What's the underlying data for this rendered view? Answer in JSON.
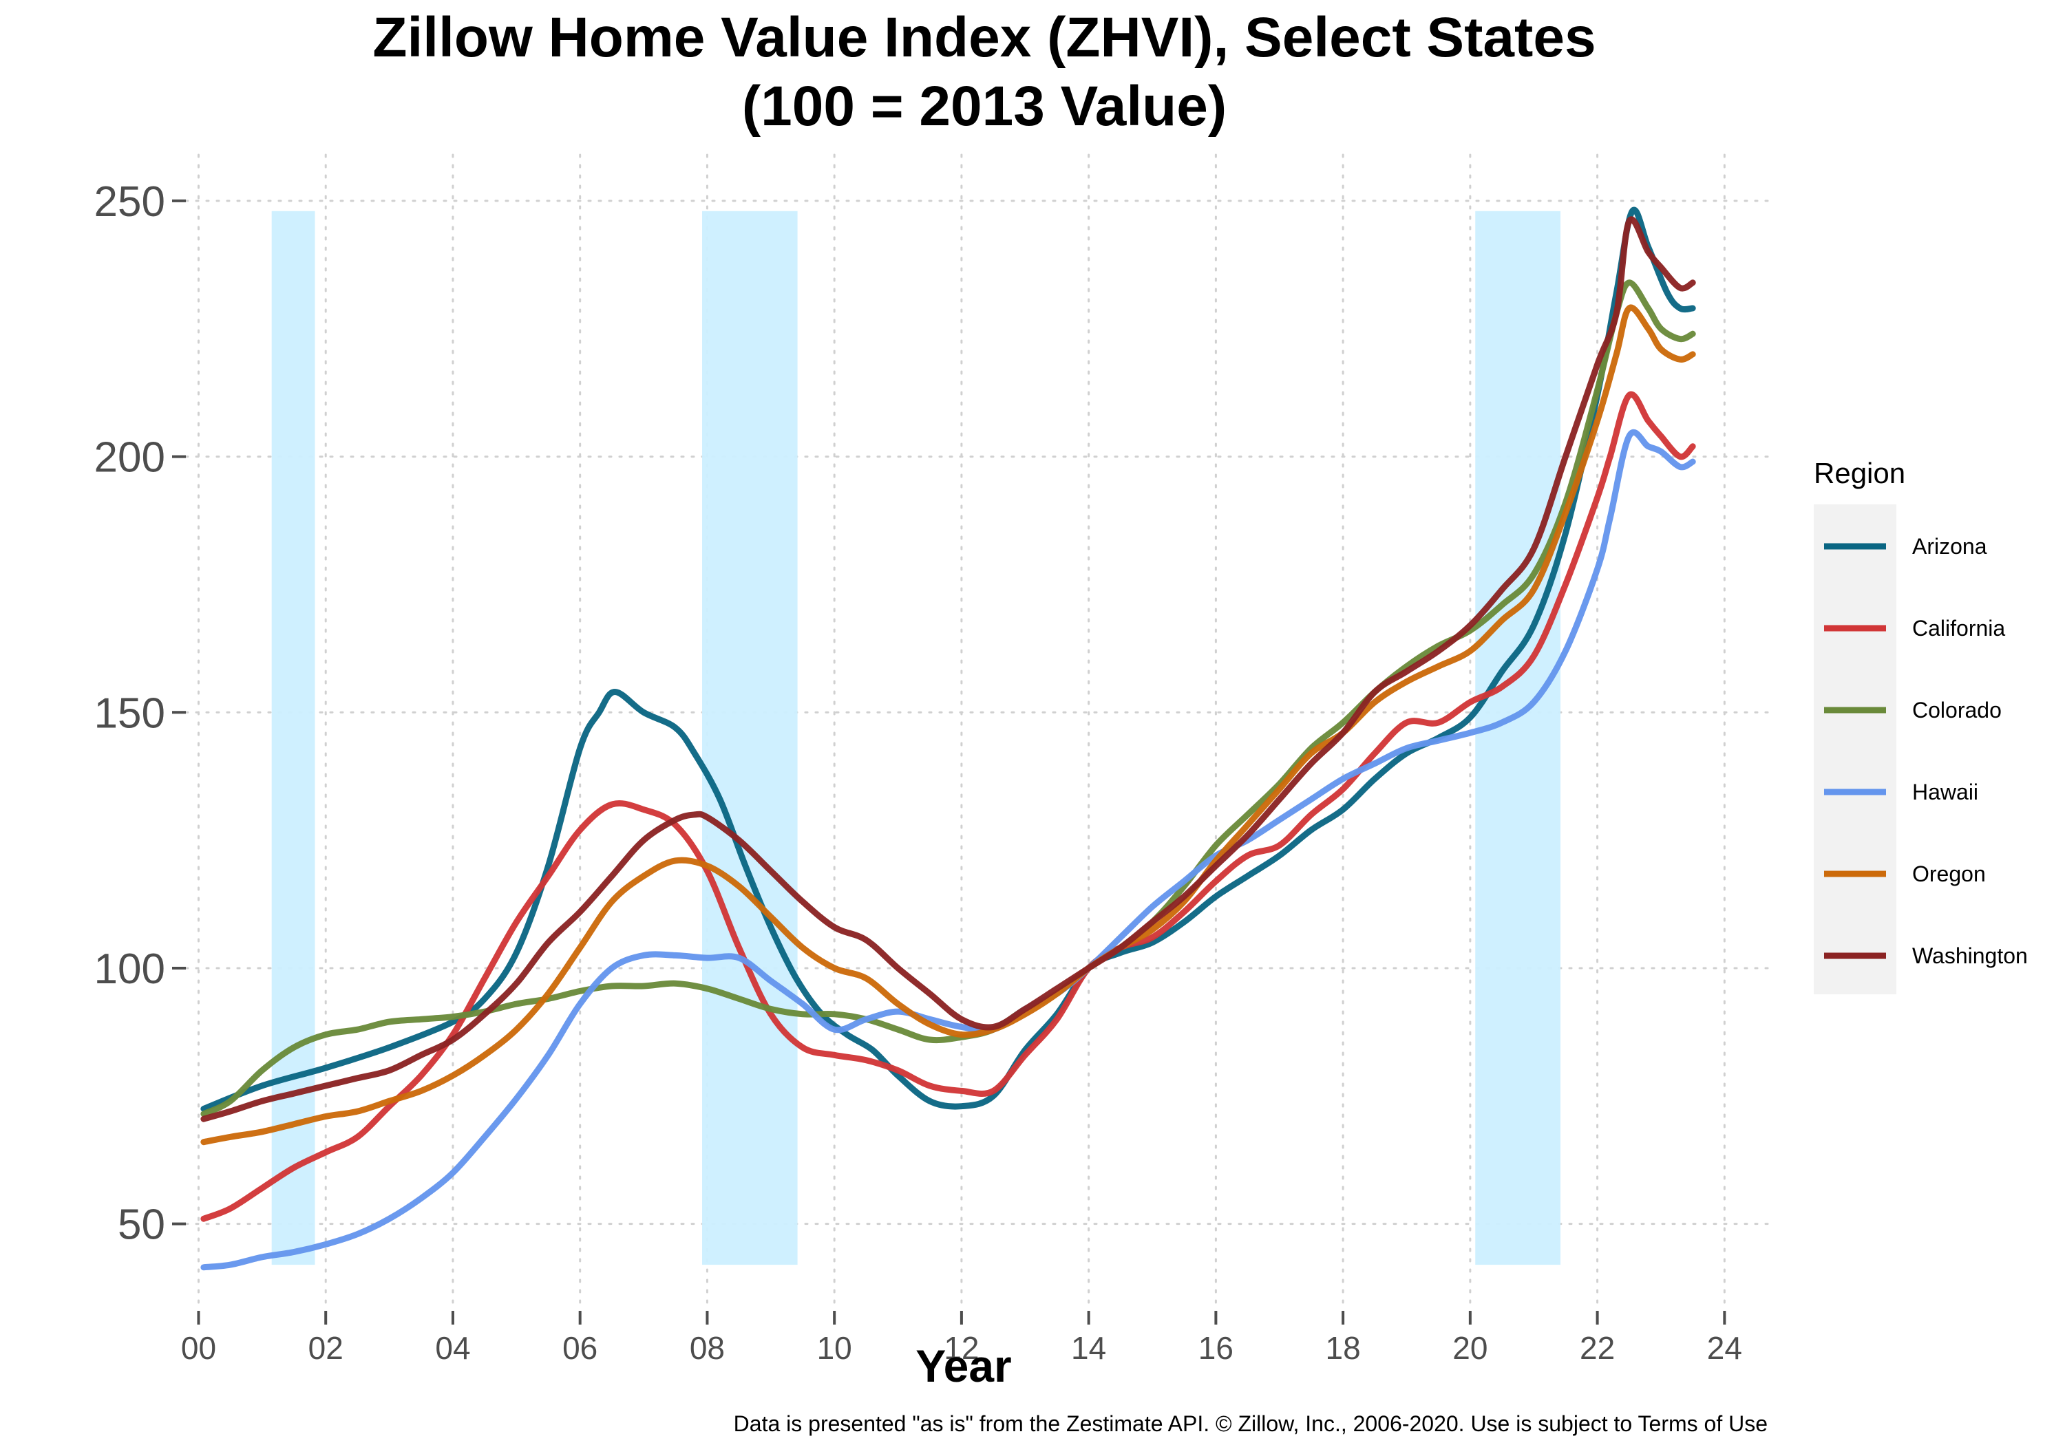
{
  "chart_data": {
    "type": "line",
    "title_lines": [
      "Zillow Home Value Index (ZHVI), Select States",
      "(100 = 2013 Value)"
    ],
    "xlabel": "Year",
    "ylabel": "",
    "caption": "Data is presented \"as is\" from the Zestimate API. © Zillow, Inc., 2006-2020. Use is subject to Terms of Use",
    "xlim": [
      -0.2,
      24.7
    ],
    "ylim": [
      33,
      259
    ],
    "x_ticks": [
      0,
      2,
      4,
      6,
      8,
      10,
      12,
      14,
      16,
      18,
      20,
      22,
      24
    ],
    "x_tick_labels": [
      "00",
      "02",
      "04",
      "06",
      "08",
      "10",
      "12",
      "14",
      "16",
      "18",
      "20",
      "22",
      "24"
    ],
    "y_ticks": [
      50,
      100,
      150,
      200,
      250
    ],
    "y_tick_labels": [
      "50",
      "100",
      "150",
      "200",
      "250"
    ],
    "grid": true,
    "legend": {
      "title": "Region",
      "placement": "right"
    },
    "recession_bands": [
      {
        "start": 1.15,
        "end": 1.83,
        "ymin": 42,
        "ymax": 248
      },
      {
        "start": 7.92,
        "end": 9.42,
        "ymin": 42,
        "ymax": 248
      },
      {
        "start": 20.08,
        "end": 21.42,
        "ymin": 42,
        "ymax": 248
      }
    ],
    "band_color": "#ccefff",
    "series": [
      {
        "name": "Arizona",
        "color": "#0a6683",
        "points": [
          [
            0.08,
            72.5
          ],
          [
            1,
            77
          ],
          [
            2,
            80.5
          ],
          [
            3,
            84.5
          ],
          [
            4,
            89.5
          ],
          [
            4.5,
            94
          ],
          [
            5,
            103
          ],
          [
            5.5,
            120
          ],
          [
            6,
            143
          ],
          [
            6.3,
            150
          ],
          [
            6.55,
            154
          ],
          [
            7,
            150
          ],
          [
            7.5,
            147
          ],
          [
            7.8,
            142
          ],
          [
            8.2,
            133
          ],
          [
            8.6,
            120
          ],
          [
            9,
            108
          ],
          [
            9.4,
            98
          ],
          [
            9.8,
            91
          ],
          [
            10.2,
            87
          ],
          [
            10.6,
            84
          ],
          [
            11,
            79
          ],
          [
            11.5,
            74
          ],
          [
            12,
            73
          ],
          [
            12.5,
            75
          ],
          [
            13,
            84
          ],
          [
            13.5,
            91
          ],
          [
            14,
            100
          ],
          [
            14.5,
            103
          ],
          [
            15,
            105
          ],
          [
            15.5,
            109
          ],
          [
            16,
            114
          ],
          [
            16.5,
            118
          ],
          [
            17,
            122
          ],
          [
            17.5,
            127
          ],
          [
            18,
            131
          ],
          [
            18.5,
            137
          ],
          [
            19,
            142
          ],
          [
            19.5,
            145
          ],
          [
            20,
            149
          ],
          [
            20.5,
            158
          ],
          [
            21,
            167
          ],
          [
            21.5,
            185
          ],
          [
            22,
            212
          ],
          [
            22.3,
            232
          ],
          [
            22.55,
            248
          ],
          [
            22.8,
            241
          ],
          [
            23.1,
            232
          ],
          [
            23.3,
            229
          ],
          [
            23.5,
            229
          ]
        ]
      },
      {
        "name": "California",
        "color": "#d13637",
        "points": [
          [
            0.08,
            51
          ],
          [
            0.5,
            53
          ],
          [
            1,
            57
          ],
          [
            1.5,
            61
          ],
          [
            2,
            64
          ],
          [
            2.5,
            67
          ],
          [
            3,
            73
          ],
          [
            3.5,
            79
          ],
          [
            4,
            87
          ],
          [
            4.5,
            98
          ],
          [
            5,
            109
          ],
          [
            5.5,
            118
          ],
          [
            6,
            127
          ],
          [
            6.5,
            132
          ],
          [
            7,
            131
          ],
          [
            7.5,
            128
          ],
          [
            8,
            119
          ],
          [
            8.5,
            104
          ],
          [
            9,
            91
          ],
          [
            9.5,
            84.5
          ],
          [
            10,
            83
          ],
          [
            10.5,
            82
          ],
          [
            11,
            80
          ],
          [
            11.5,
            77
          ],
          [
            12,
            76
          ],
          [
            12.5,
            76
          ],
          [
            13,
            83
          ],
          [
            13.5,
            90
          ],
          [
            14,
            100
          ],
          [
            14.5,
            104
          ],
          [
            15,
            106
          ],
          [
            15.5,
            111
          ],
          [
            16,
            117
          ],
          [
            16.5,
            122
          ],
          [
            17,
            124
          ],
          [
            17.5,
            130
          ],
          [
            18,
            135
          ],
          [
            18.5,
            142
          ],
          [
            19,
            148
          ],
          [
            19.5,
            148
          ],
          [
            20,
            152
          ],
          [
            20.5,
            155
          ],
          [
            21,
            161
          ],
          [
            21.5,
            175
          ],
          [
            22,
            192
          ],
          [
            22.2,
            200
          ],
          [
            22.5,
            212
          ],
          [
            22.8,
            207
          ],
          [
            23,
            204
          ],
          [
            23.3,
            200
          ],
          [
            23.5,
            202
          ]
        ]
      },
      {
        "name": "Colorado",
        "color": "#6a8a3a",
        "points": [
          [
            0.08,
            71.5
          ],
          [
            0.5,
            74
          ],
          [
            1,
            80
          ],
          [
            1.5,
            84.5
          ],
          [
            2,
            87
          ],
          [
            2.5,
            88
          ],
          [
            3,
            89.5
          ],
          [
            3.5,
            90
          ],
          [
            4,
            90.5
          ],
          [
            4.5,
            91.5
          ],
          [
            5,
            93
          ],
          [
            5.5,
            94
          ],
          [
            6,
            95.5
          ],
          [
            6.5,
            96.5
          ],
          [
            7,
            96.5
          ],
          [
            7.5,
            97
          ],
          [
            8,
            96
          ],
          [
            8.5,
            94
          ],
          [
            9,
            92
          ],
          [
            9.5,
            91
          ],
          [
            10,
            91
          ],
          [
            10.5,
            90
          ],
          [
            11,
            88
          ],
          [
            11.5,
            86
          ],
          [
            12,
            86.5
          ],
          [
            12.5,
            88
          ],
          [
            13,
            92
          ],
          [
            13.5,
            95
          ],
          [
            14,
            100
          ],
          [
            14.5,
            104
          ],
          [
            15,
            109
          ],
          [
            15.5,
            116
          ],
          [
            16,
            124
          ],
          [
            16.5,
            130
          ],
          [
            17,
            136
          ],
          [
            17.5,
            143
          ],
          [
            18,
            148
          ],
          [
            18.5,
            154
          ],
          [
            19,
            159
          ],
          [
            19.5,
            163
          ],
          [
            20,
            166
          ],
          [
            20.5,
            171
          ],
          [
            21,
            177
          ],
          [
            21.5,
            191
          ],
          [
            22,
            213
          ],
          [
            22.3,
            228
          ],
          [
            22.5,
            234
          ],
          [
            22.8,
            229
          ],
          [
            23,
            225
          ],
          [
            23.3,
            223
          ],
          [
            23.5,
            224
          ]
        ]
      },
      {
        "name": "Hawaii",
        "color": "#6495ed",
        "points": [
          [
            0.08,
            41.5
          ],
          [
            0.5,
            42
          ],
          [
            1,
            43.5
          ],
          [
            1.5,
            44.5
          ],
          [
            2,
            46
          ],
          [
            2.5,
            48
          ],
          [
            3,
            51
          ],
          [
            3.5,
            55
          ],
          [
            4,
            60
          ],
          [
            4.5,
            67
          ],
          [
            5,
            74.5
          ],
          [
            5.5,
            83
          ],
          [
            6,
            93
          ],
          [
            6.5,
            100
          ],
          [
            7,
            102.5
          ],
          [
            7.5,
            102.5
          ],
          [
            8,
            102
          ],
          [
            8.5,
            102
          ],
          [
            9,
            97.5
          ],
          [
            9.5,
            93
          ],
          [
            10,
            88
          ],
          [
            10.5,
            90
          ],
          [
            11,
            91.5
          ],
          [
            11.5,
            90
          ],
          [
            12,
            88.5
          ],
          [
            12.5,
            88
          ],
          [
            13,
            92
          ],
          [
            13.5,
            95
          ],
          [
            14,
            100
          ],
          [
            14.5,
            106
          ],
          [
            15,
            112
          ],
          [
            15.5,
            117
          ],
          [
            16,
            122
          ],
          [
            16.5,
            125
          ],
          [
            17,
            129
          ],
          [
            17.5,
            133
          ],
          [
            18,
            137
          ],
          [
            18.5,
            140
          ],
          [
            19,
            143
          ],
          [
            19.5,
            144.5
          ],
          [
            20,
            146
          ],
          [
            20.5,
            148
          ],
          [
            21,
            152
          ],
          [
            21.5,
            162
          ],
          [
            22,
            178
          ],
          [
            22.2,
            188
          ],
          [
            22.5,
            204
          ],
          [
            22.8,
            202
          ],
          [
            23,
            201
          ],
          [
            23.3,
            198
          ],
          [
            23.5,
            199
          ]
        ]
      },
      {
        "name": "Oregon",
        "color": "#cc6a0a",
        "points": [
          [
            0.08,
            66
          ],
          [
            0.5,
            67
          ],
          [
            1,
            68
          ],
          [
            1.5,
            69.5
          ],
          [
            2,
            71
          ],
          [
            2.5,
            72
          ],
          [
            3,
            74
          ],
          [
            3.5,
            76
          ],
          [
            4,
            79
          ],
          [
            4.5,
            83
          ],
          [
            5,
            88
          ],
          [
            5.5,
            95
          ],
          [
            6,
            104
          ],
          [
            6.5,
            113
          ],
          [
            7,
            118
          ],
          [
            7.5,
            121
          ],
          [
            8,
            120
          ],
          [
            8.5,
            116
          ],
          [
            9,
            110
          ],
          [
            9.5,
            104
          ],
          [
            10,
            100
          ],
          [
            10.5,
            98
          ],
          [
            11,
            93
          ],
          [
            11.5,
            89
          ],
          [
            12,
            87
          ],
          [
            12.5,
            88
          ],
          [
            13,
            91
          ],
          [
            13.5,
            95
          ],
          [
            14,
            100
          ],
          [
            14.5,
            104
          ],
          [
            15,
            107.5
          ],
          [
            15.5,
            113
          ],
          [
            16,
            121
          ],
          [
            16.5,
            128
          ],
          [
            17,
            135
          ],
          [
            17.5,
            142
          ],
          [
            18,
            146
          ],
          [
            18.5,
            152
          ],
          [
            19,
            156
          ],
          [
            19.5,
            159
          ],
          [
            20,
            162
          ],
          [
            20.5,
            168
          ],
          [
            21,
            174
          ],
          [
            21.5,
            189
          ],
          [
            22,
            207
          ],
          [
            22.3,
            220
          ],
          [
            22.5,
            229
          ],
          [
            22.8,
            225
          ],
          [
            23,
            221
          ],
          [
            23.3,
            219
          ],
          [
            23.5,
            220
          ]
        ]
      },
      {
        "name": "Washington",
        "color": "#8b2323",
        "points": [
          [
            0.08,
            70.5
          ],
          [
            0.5,
            72
          ],
          [
            1,
            74
          ],
          [
            1.5,
            75.5
          ],
          [
            2,
            77
          ],
          [
            2.5,
            78.5
          ],
          [
            3,
            80
          ],
          [
            3.5,
            83
          ],
          [
            4,
            86
          ],
          [
            4.5,
            91
          ],
          [
            5,
            97
          ],
          [
            5.5,
            105
          ],
          [
            6,
            111
          ],
          [
            6.5,
            118
          ],
          [
            7,
            125
          ],
          [
            7.5,
            129
          ],
          [
            7.8,
            130
          ],
          [
            8,
            129.5
          ],
          [
            8.5,
            125
          ],
          [
            9,
            119
          ],
          [
            9.5,
            113
          ],
          [
            10,
            108
          ],
          [
            10.5,
            105.5
          ],
          [
            11,
            100
          ],
          [
            11.5,
            95
          ],
          [
            12,
            90
          ],
          [
            12.5,
            88.5
          ],
          [
            13,
            92
          ],
          [
            13.5,
            96
          ],
          [
            14,
            100
          ],
          [
            14.5,
            104
          ],
          [
            15,
            109
          ],
          [
            15.5,
            114
          ],
          [
            16,
            120
          ],
          [
            16.5,
            126
          ],
          [
            17,
            133
          ],
          [
            17.5,
            140
          ],
          [
            18,
            146
          ],
          [
            18.5,
            154
          ],
          [
            19,
            158
          ],
          [
            19.5,
            162
          ],
          [
            20,
            167
          ],
          [
            20.5,
            174
          ],
          [
            21,
            182
          ],
          [
            21.5,
            200
          ],
          [
            22,
            218
          ],
          [
            22.3,
            228
          ],
          [
            22.5,
            246
          ],
          [
            22.8,
            240
          ],
          [
            23,
            237
          ],
          [
            23.3,
            233
          ],
          [
            23.5,
            234
          ]
        ]
      }
    ]
  }
}
